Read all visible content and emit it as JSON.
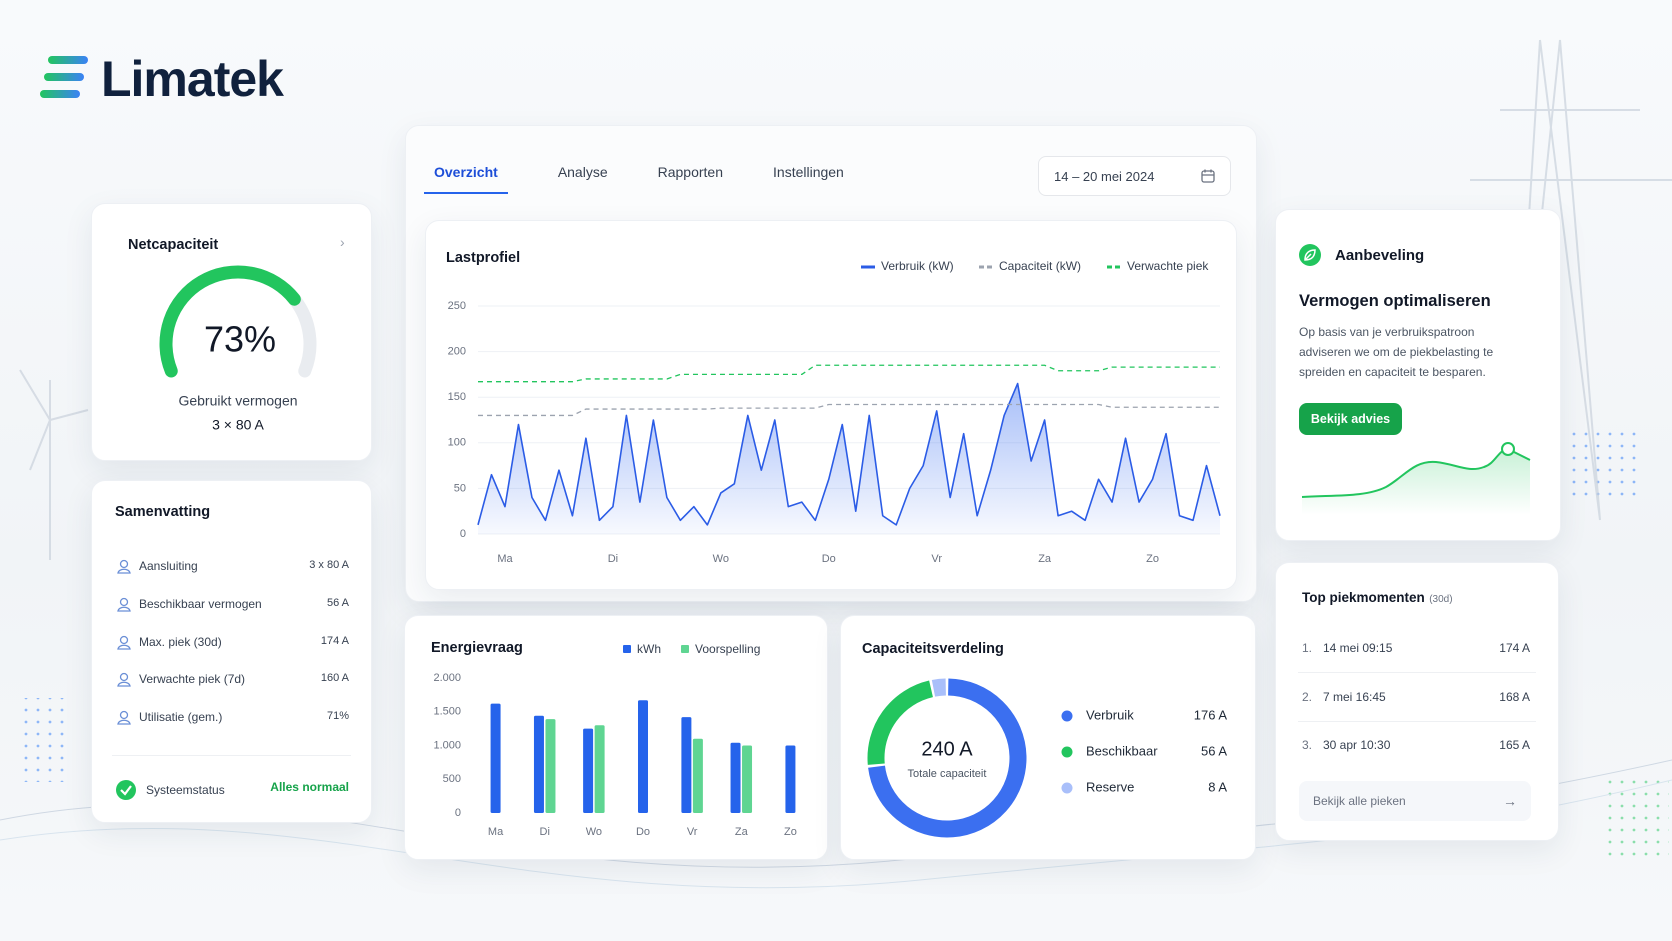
{
  "brand": {
    "name": "Limatek"
  },
  "nav": {
    "tabs": [
      "Overzicht",
      "Analyse",
      "Rapporten",
      "Instellingen"
    ],
    "date_range": "14 – 20 mei 2024"
  },
  "chart_data": [
    {
      "type": "gauge",
      "title": "Netcapaciteit",
      "value": 73,
      "value_label": "73%",
      "label": "Gebruikt vermogen",
      "sublabel": "3 × 80 A",
      "color": "#22c55e"
    },
    {
      "type": "line",
      "title": "Lastprofiel",
      "categories": [
        null,
        null,
        "Ma",
        null,
        null,
        null,
        null,
        null,
        null,
        null,
        "Di",
        null,
        null,
        null,
        null,
        null,
        null,
        null,
        "Wo",
        null,
        null,
        null,
        null,
        null,
        null,
        null,
        "Do",
        null,
        null,
        null,
        null,
        null,
        null,
        null,
        "Vr",
        null,
        null,
        null,
        null,
        null,
        null,
        null,
        "Za",
        null,
        null,
        null,
        null,
        null,
        null,
        null,
        "Zo",
        null,
        null,
        null,
        null,
        null
      ],
      "series": [
        {
          "name": "Verbruik (kW)",
          "color": "#2b5ce6",
          "style": "solid",
          "area": true,
          "values": [
            10,
            65,
            30,
            120,
            40,
            15,
            70,
            20,
            105,
            15,
            30,
            130,
            35,
            125,
            40,
            15,
            30,
            10,
            45,
            55,
            130,
            70,
            125,
            30,
            35,
            15,
            60,
            120,
            25,
            130,
            20,
            10,
            50,
            75,
            135,
            40,
            110,
            20,
            70,
            130,
            165,
            80,
            125,
            20,
            25,
            15,
            60,
            35,
            105,
            35,
            60,
            110,
            20,
            15,
            75,
            20
          ]
        },
        {
          "name": "Capaciteit (kW)",
          "color": "#9ca3af",
          "style": "dashed",
          "values": [
            130,
            130,
            130,
            130,
            130,
            130,
            130,
            130,
            137,
            137,
            137,
            137,
            137,
            137,
            137,
            137,
            137,
            137,
            138,
            138,
            138,
            138,
            138,
            138,
            138,
            138,
            142,
            142,
            142,
            142,
            142,
            142,
            142,
            142,
            142,
            142,
            142,
            142,
            142,
            142,
            142,
            142,
            142,
            142,
            142,
            142,
            142,
            139,
            139,
            139,
            139,
            139,
            139,
            139,
            139,
            139
          ]
        },
        {
          "name": "Verwachte piek",
          "color": "#22c55e",
          "style": "dashed",
          "values": [
            167,
            167,
            167,
            167,
            167,
            167,
            167,
            167,
            170,
            170,
            170,
            170,
            170,
            170,
            170,
            175,
            175,
            175,
            175,
            175,
            175,
            175,
            175,
            175,
            175,
            185,
            185,
            185,
            185,
            185,
            185,
            185,
            185,
            185,
            185,
            185,
            185,
            185,
            185,
            185,
            185,
            185,
            185,
            179,
            179,
            179,
            179,
            183,
            183,
            183,
            183,
            183,
            183,
            183,
            183,
            183
          ]
        }
      ],
      "ylim": [
        0,
        250
      ],
      "yticks": [
        0,
        50,
        100,
        150,
        200,
        250
      ],
      "grid": true
    },
    {
      "type": "bar",
      "title": "Energievraag",
      "categories": [
        "Ma",
        "Di",
        "Wo",
        "Do",
        "Vr",
        "Za",
        "Zo"
      ],
      "series": [
        {
          "name": "kWh",
          "color": "#2563eb",
          "values": [
            1620,
            1440,
            1250,
            1670,
            1420,
            1040,
            1000
          ]
        },
        {
          "name": "Voorspelling",
          "color": "#5fd592",
          "values": [
            null,
            1390,
            1300,
            null,
            1100,
            1000,
            null
          ]
        }
      ],
      "ylim": [
        0,
        2000
      ],
      "yticks": [
        0,
        500,
        {
          "value": 1000,
          "label": "1.000"
        },
        {
          "value": 1500,
          "label": "1.500"
        },
        {
          "value": 2000,
          "label": "2.000"
        }
      ],
      "grid": false
    },
    {
      "type": "donut",
      "title": "Capaciteitsverdeling",
      "categories": [
        "Verbruik",
        "Beschikbaar",
        "Reserve"
      ],
      "values": [
        176,
        56,
        8
      ],
      "value_labels": [
        "176 A",
        "56 A",
        "8 A"
      ],
      "colors": [
        "#3b6ff0",
        "#22c55e",
        "#a9bffa"
      ],
      "total": 240,
      "total_label": "240 A",
      "total_caption": "Totale capaciteit"
    }
  ],
  "samenvatting": {
    "title": "Samenvatting",
    "rows": [
      {
        "label": "Aansluiting",
        "value": "3 x 80 A"
      },
      {
        "label": "Beschikbaar vermogen",
        "value": "56 A"
      },
      {
        "label": "Max. piek (30d)",
        "value": "174 A"
      },
      {
        "label": "Verwachte piek (7d)",
        "value": "160 A"
      },
      {
        "label": "Utilisatie (gem.)",
        "value": "71%"
      }
    ],
    "status_label": "Systeemstatus",
    "status_value": "Alles normaal"
  },
  "aanbeveling": {
    "title": "Aanbeveling",
    "heading": "Vermogen optimaliseren",
    "body": "Op basis van je verbruikspatroon adviseren we om de piekbelasting te spreiden en capaciteit te besparen.",
    "button": "Bekijk advies"
  },
  "top_piekmomenten": {
    "title": "Top piekmomenten",
    "title_note": "(30d)",
    "rows": [
      {
        "rank": "1.",
        "moment": "14 mei 09:15",
        "value": "174 A"
      },
      {
        "rank": "2.",
        "moment": "7 mei 16:45",
        "value": "168 A"
      },
      {
        "rank": "3.",
        "moment": "30 apr 10:30",
        "value": "165 A"
      }
    ],
    "button": "Bekijk alle pieken"
  }
}
